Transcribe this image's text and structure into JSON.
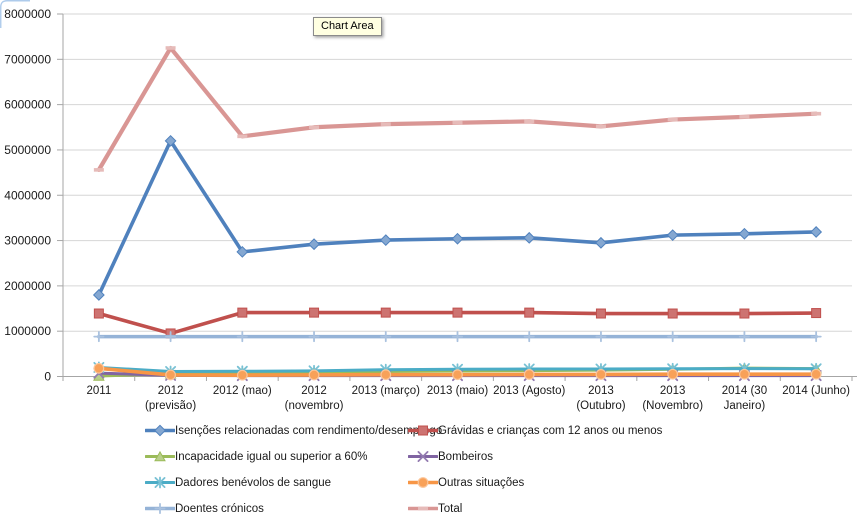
{
  "chart_data": {
    "type": "line",
    "title": "",
    "tooltip_label": "Chart Area",
    "grid": true,
    "legend_position": "bottom",
    "ylim": [
      0,
      8000000
    ],
    "ytick_step": 1000000,
    "xlabel": "",
    "ylabel": "",
    "categories": [
      "2011",
      "2012 (previsão)",
      "2012 (mao)",
      "2012 (novembro)",
      "2013 (março)",
      "2013 (maio)",
      "2013 (Agosto)",
      "2013 (Outubro)",
      "2013 (Novembro)",
      "2014 (30 Janeiro)",
      "2014 (Junho)"
    ],
    "category_label_lines": [
      [
        "2011"
      ],
      [
        "2012",
        "(previsão)"
      ],
      [
        "2012 (mao)"
      ],
      [
        "2012",
        "(novembro)"
      ],
      [
        "2013 (março)"
      ],
      [
        "2013 (maio)"
      ],
      [
        "2013 (Agosto)"
      ],
      [
        "2013",
        "(Outubro)"
      ],
      [
        "2013",
        "(Novembro)"
      ],
      [
        "2014 (30",
        "Janeiro)"
      ],
      [
        "2014 (Junho)"
      ]
    ],
    "series": [
      {
        "name": "Isenções relacionadas com rendimento/desemprego",
        "color": "#4F81BD",
        "marker": "diamond",
        "values": [
          1800000,
          5200000,
          2750000,
          2920000,
          3010000,
          3040000,
          3060000,
          2950000,
          3120000,
          3150000,
          3190000
        ]
      },
      {
        "name": "Grávidas e crianças com 12 anos ou menos",
        "color": "#C0504D",
        "marker": "square",
        "values": [
          1390000,
          950000,
          1410000,
          1410000,
          1410000,
          1410000,
          1410000,
          1390000,
          1390000,
          1390000,
          1400000
        ]
      },
      {
        "name": "Incapacidade igual ou superior a 60%",
        "color": "#9BBB59",
        "marker": "triangle",
        "values": [
          10000,
          60000,
          90000,
          100000,
          110000,
          120000,
          130000,
          140000,
          160000,
          185000,
          175000
        ]
      },
      {
        "name": "Bombeiros",
        "color": "#8064A2",
        "marker": "x",
        "values": [
          75000,
          25000,
          20000,
          20000,
          20000,
          20000,
          20000,
          20000,
          20000,
          20000,
          20000
        ]
      },
      {
        "name": "Dadores benévolos de sangue",
        "color": "#4BACC6",
        "marker": "asterisk",
        "values": [
          200000,
          110000,
          115000,
          125000,
          150000,
          160000,
          165000,
          165000,
          170000,
          175000,
          170000
        ]
      },
      {
        "name": "Outras situações",
        "color": "#F79646",
        "marker": "circle",
        "values": [
          180000,
          35000,
          30000,
          35000,
          40000,
          40000,
          45000,
          45000,
          50000,
          50000,
          50000
        ]
      },
      {
        "name": "Doentes crónicos",
        "color": "#95B3D7",
        "marker": "plus",
        "values": [
          880000,
          880000,
          880000,
          880000,
          880000,
          880000,
          880000,
          880000,
          880000,
          880000,
          880000
        ]
      },
      {
        "name": "Total",
        "color": "#D99694",
        "marker": "dash",
        "values": [
          4560000,
          7250000,
          5300000,
          5500000,
          5570000,
          5600000,
          5630000,
          5520000,
          5670000,
          5730000,
          5800000
        ]
      }
    ],
    "colors": {
      "gridline": "#D6D6D6",
      "axis": "#A6A6A6",
      "tick_label": "#1a1a1a",
      "selection_border": "#AECBEB",
      "tooltip_bg": "#FFFFE1"
    }
  }
}
